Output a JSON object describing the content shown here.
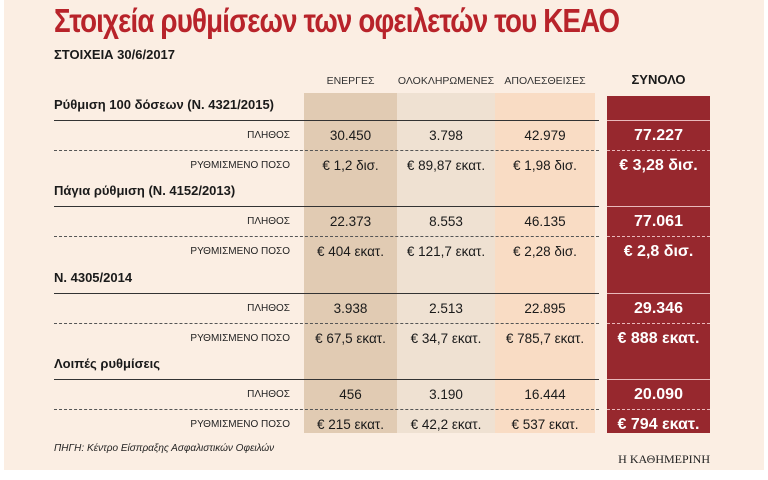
{
  "title": "Στοιχεία ρυθμίσεων των οφειλετών του ΚΕΑΟ",
  "subtitle": "ΣΤΟΙΧΕΙΑ 30/6/2017",
  "source": "ΠΗΓΗ: Κέντρο Είσπραξης Ασφαλιστικών Οφειλών",
  "logo": "Η ΚΑΘΗΜΕΡΙΝΗ",
  "colors": {
    "col_active": "#e1cbb3",
    "col_completed": "#efe1d2",
    "col_lost": "#f9dcc4",
    "col_total": "#97282e",
    "title": "#b8232a"
  },
  "chart_data": {
    "type": "table",
    "columns": [
      "ΕΝΕΡΓΕΣ",
      "ΟΛΟΚΛΗΡΩΜΕΝΕΣ",
      "ΑΠΟΛΕΣΘΕΙΣΕΣ",
      "ΣΥΝΟΛΟ"
    ],
    "row_labels": [
      "ΠΛΗΘΟΣ",
      "ΡΥΘΜΙΣΜΕΝΟ ΠΟΣΟ"
    ],
    "groups": [
      {
        "name": "Ρύθμιση 100 δόσεων (Ν. 4321/2015)",
        "count": [
          "30.450",
          "3.798",
          "42.979",
          "77.227"
        ],
        "amount": [
          "€ 1,2 δισ.",
          "€ 89,87 εκατ.",
          "€ 1,98 δισ.",
          "€ 3,28 δισ."
        ]
      },
      {
        "name": "Πάγια ρύθμιση (Ν. 4152/2013)",
        "count": [
          "22.373",
          "8.553",
          "46.135",
          "77.061"
        ],
        "amount": [
          "€ 404 εκατ.",
          "€ 121,7 εκατ.",
          "€ 2,28 δισ.",
          "€ 2,8 δισ."
        ]
      },
      {
        "name": "Ν. 4305/2014",
        "count": [
          "3.938",
          "2.513",
          "22.895",
          "29.346"
        ],
        "amount": [
          "€ 67,5 εκατ.",
          "€ 34,7 εκατ.",
          "€ 785,7 εκατ.",
          "€ 888 εκατ."
        ]
      },
      {
        "name": "Λοιπές ρυθμίσεις",
        "count": [
          "456",
          "3.190",
          "16.444",
          "20.090"
        ],
        "amount": [
          "€ 215 εκατ.",
          "€ 42,2 εκατ.",
          "€ 537 εκατ.",
          "€ 794 εκατ."
        ]
      }
    ]
  }
}
